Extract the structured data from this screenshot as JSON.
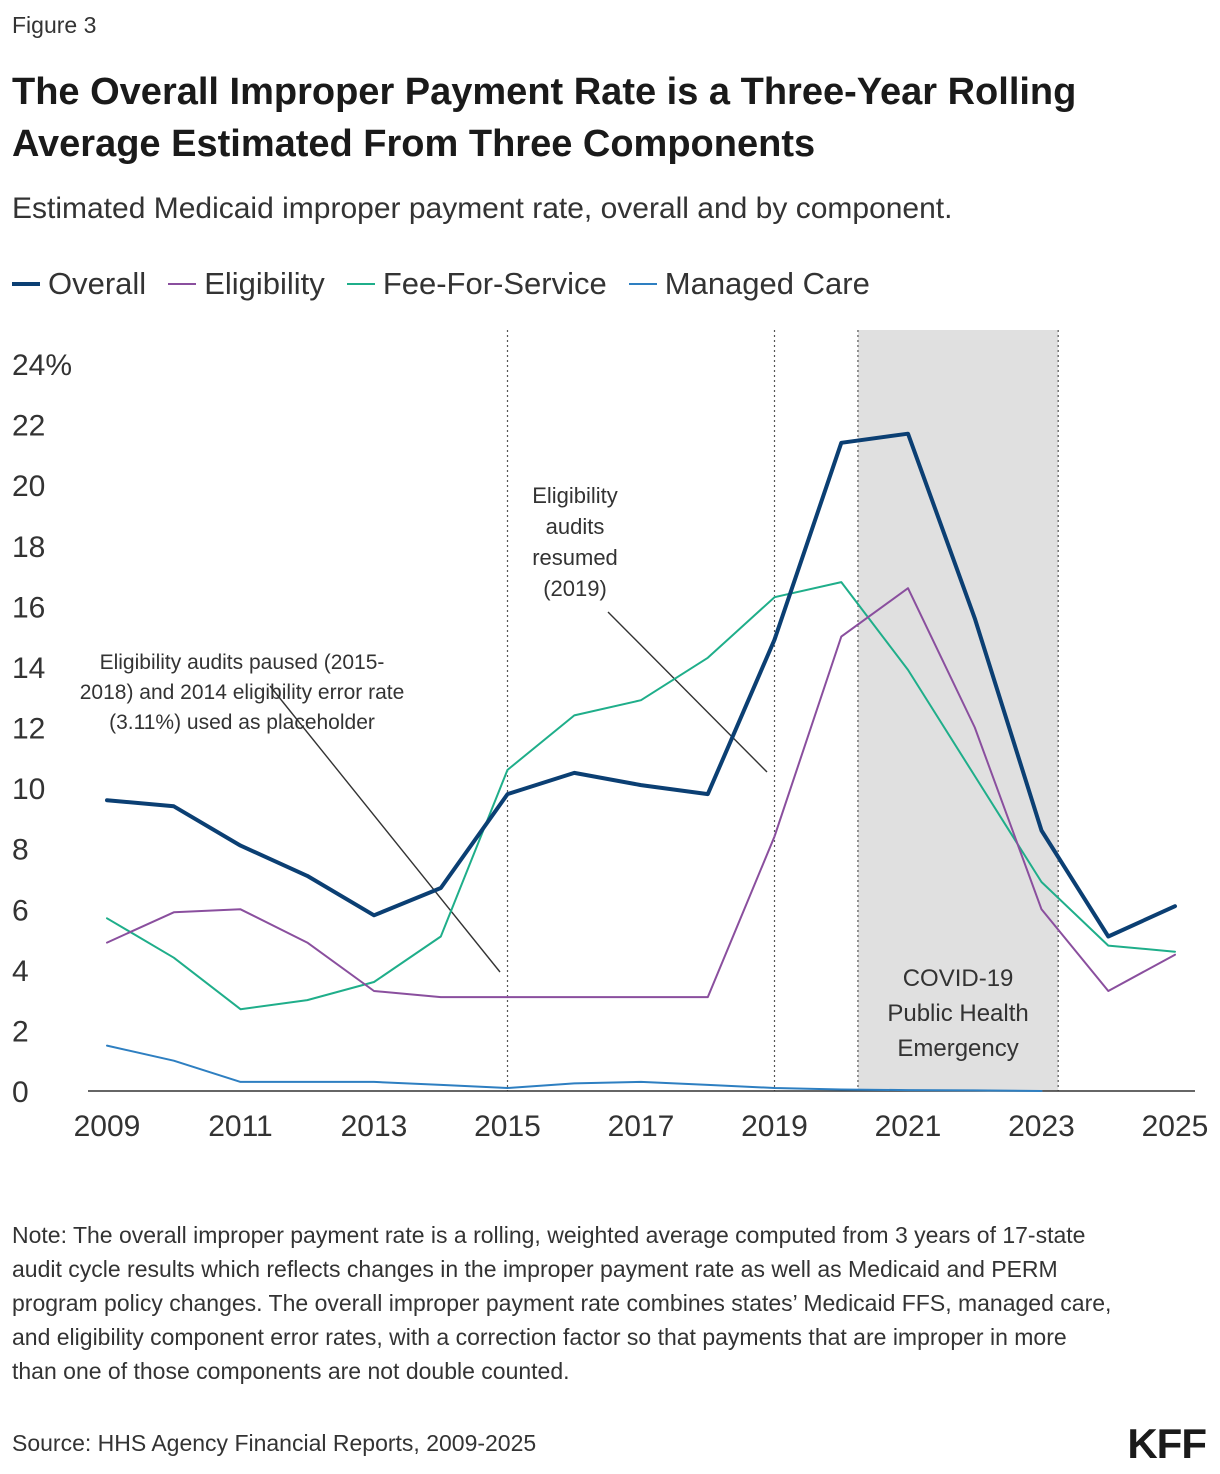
{
  "figure_label": "Figure 3",
  "title": "The Overall Improper Payment Rate is a Three-Year Rolling Average Estimated From Three Components",
  "subtitle": "Estimated Medicaid improper payment rate, overall and by component.",
  "note": "Note: The overall improper payment rate is a rolling, weighted average computed from 3 years of 17-state audit cycle results which reflects changes in the improper payment rate as well as Medicaid and PERM program policy changes. The overall improper payment rate combines states’ Medicaid FFS, managed care, and eligibility component error rates, with a correction factor so that payments that are improper in more than one of those components are not double counted.",
  "source": "Source: HHS Agency Financial Reports, 2009-2025",
  "logo": "KFF",
  "colors": {
    "overall": "#0b3f73",
    "eligibility": "#8a4f9e",
    "ffs": "#1fae8a",
    "managed_care": "#2e7fc1",
    "shade": "#e0e0e0"
  },
  "chart_data": {
    "type": "line",
    "x": [
      2009,
      2010,
      2011,
      2012,
      2013,
      2014,
      2015,
      2016,
      2017,
      2018,
      2019,
      2020,
      2021,
      2022,
      2023,
      2024,
      2025
    ],
    "x_tick_labels": [
      "2009",
      "2011",
      "2013",
      "2015",
      "2017",
      "2019",
      "2021",
      "2023",
      "2025"
    ],
    "y_tick_labels": [
      "24%",
      "22",
      "20",
      "18",
      "16",
      "14",
      "12",
      "10",
      "8",
      "6",
      "4",
      "2",
      "0"
    ],
    "ylim": [
      0,
      24
    ],
    "xlim": [
      2009,
      2025
    ],
    "series": [
      {
        "name": "Overall",
        "key": "overall",
        "values": [
          9.6,
          9.4,
          8.1,
          7.1,
          5.8,
          6.7,
          9.8,
          10.5,
          10.1,
          9.8,
          14.9,
          21.4,
          21.7,
          15.6,
          8.6,
          5.1,
          6.1
        ]
      },
      {
        "name": "Eligibility",
        "key": "eligibility",
        "values": [
          4.9,
          5.9,
          6.0,
          4.9,
          3.3,
          3.1,
          3.1,
          3.1,
          3.1,
          3.1,
          8.4,
          15.0,
          16.6,
          12.0,
          6.0,
          3.3,
          4.5
        ]
      },
      {
        "name": "Fee-For-Service",
        "key": "ffs",
        "values": [
          5.7,
          4.4,
          2.7,
          3.0,
          3.6,
          5.1,
          10.6,
          12.4,
          12.9,
          14.3,
          16.3,
          16.8,
          13.9,
          10.4,
          6.9,
          4.8,
          4.6
        ]
      },
      {
        "name": "Managed Care",
        "key": "managed_care",
        "values": [
          1.5,
          1.0,
          0.3,
          0.3,
          0.3,
          0.2,
          0.1,
          0.25,
          0.3,
          0.2,
          0.1,
          0.05,
          0.03,
          0.02,
          0.0,
          null,
          null
        ]
      }
    ],
    "shaded_region": {
      "from": 2020.25,
      "to": 2023.25,
      "label_lines": [
        "COVID-19",
        "Public Health",
        "Emergency"
      ]
    },
    "vlines": [
      2015,
      2019
    ],
    "annotations": [
      {
        "lines": [
          "Eligibility audits paused (2015-",
          "2018) and 2014 eligibility error rate",
          "(3.11%) used as placeholder"
        ]
      },
      {
        "lines": [
          "Eligibility",
          "audits",
          "resumed",
          "(2019)"
        ]
      }
    ],
    "grid": false,
    "legend_position": "top-left"
  }
}
